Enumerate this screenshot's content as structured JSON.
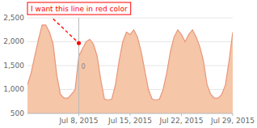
{
  "chart_data": {
    "type": "area",
    "x": [
      0,
      0.5,
      1,
      1.5,
      2,
      2.5,
      3,
      3.5,
      4,
      4.5,
      5,
      5.5,
      6,
      6.5,
      7,
      7.5,
      8,
      8.5,
      9,
      9.5,
      10,
      10.5,
      11,
      11.5,
      12,
      12.5,
      13,
      13.5,
      14,
      14.5,
      15,
      15.5,
      16,
      16.5,
      17,
      17.5,
      18,
      18.5,
      19,
      19.5,
      20,
      20.5,
      21,
      21.5,
      22,
      22.5,
      23,
      23.5,
      24,
      24.5,
      25,
      25.5,
      26,
      26.5,
      27,
      27.5,
      28
    ],
    "series": [
      {
        "type": "area",
        "color": "#f5c6a8",
        "values": [
          1100,
          1350,
          1700,
          2050,
          2350,
          2350,
          2200,
          1950,
          1300,
          900,
          820,
          820,
          900,
          1000,
          1700,
          1850,
          2000,
          2050,
          1950,
          1700,
          1200,
          800,
          780,
          800,
          1100,
          1600,
          2000,
          2200,
          2150,
          2250,
          2100,
          1800,
          1400,
          1000,
          800,
          780,
          800,
          1000,
          1350,
          1800,
          2100,
          2250,
          2150,
          2000,
          2150,
          2250,
          2100,
          1900,
          1600,
          1100,
          900,
          820,
          820,
          900,
          1100,
          1600,
          2200
        ]
      },
      {
        "type": "line",
        "color": "#e8967a",
        "values": [
          1100,
          1350,
          1700,
          2050,
          2350,
          2350,
          2200,
          1950,
          1300,
          900,
          820,
          820,
          900,
          1000,
          1700,
          1850,
          2000,
          2050,
          1950,
          1700,
          1200,
          800,
          780,
          800,
          1100,
          1600,
          2000,
          2200,
          2150,
          2250,
          2100,
          1800,
          1400,
          1000,
          800,
          780,
          800,
          1000,
          1350,
          1800,
          2100,
          2250,
          2150,
          2000,
          2150,
          2250,
          2100,
          1900,
          1600,
          1100,
          900,
          820,
          820,
          900,
          1100,
          1600,
          2200
        ]
      }
    ],
    "xlim": [
      0,
      28
    ],
    "xticks": [
      {
        "value": 7,
        "label": "Jul 8, 2015"
      },
      {
        "value": 14,
        "label": "Jul 15, 2015"
      },
      {
        "value": 21,
        "label": "Jul 22, 2015"
      },
      {
        "value": 28,
        "label": "Jul 29, 2015"
      }
    ],
    "ylim": [
      500,
      2500
    ],
    "yticks": [
      {
        "value": 500,
        "label": "500"
      },
      {
        "value": 1000,
        "label": "1,000"
      },
      {
        "value": 1500,
        "label": "1,500"
      },
      {
        "value": 2000,
        "label": "2,000"
      },
      {
        "value": 2500,
        "label": "2,500"
      }
    ],
    "grid": true,
    "annotations": [
      {
        "type": "vline",
        "x": 7,
        "y": 1480,
        "text": "0",
        "color": "#bbbbbb"
      },
      {
        "type": "line",
        "x": [
          3.5,
          7
        ],
        "y": [
          2480,
          1970
        ],
        "color": "red",
        "line_style": "dashed",
        "marker": "circle"
      },
      {
        "type": "text",
        "text": "I want this line in red color",
        "color": "red"
      }
    ]
  }
}
